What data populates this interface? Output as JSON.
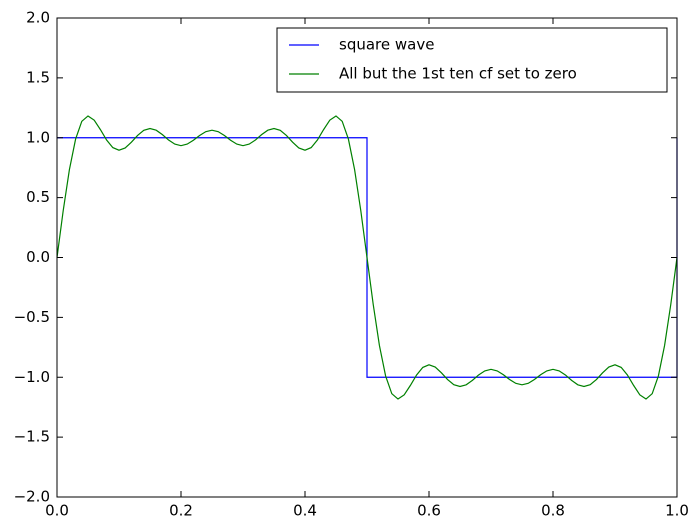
{
  "chart_data": {
    "type": "line",
    "series": [
      {
        "name": "square wave",
        "color": "#0000ff",
        "x": [
          0,
          0.5,
          0.5,
          1,
          1
        ],
        "values": [
          1,
          1,
          -1,
          -1,
          1
        ]
      },
      {
        "name": "All but the 1st ten cf set to zero",
        "color": "#008000",
        "x": [
          0,
          0.01,
          0.02,
          0.03,
          0.04,
          0.05,
          0.06,
          0.07,
          0.08,
          0.09,
          0.1,
          0.11,
          0.12,
          0.13,
          0.14,
          0.15,
          0.16,
          0.17,
          0.18,
          0.19,
          0.2,
          0.21,
          0.22,
          0.23,
          0.24,
          0.25,
          0.26,
          0.27,
          0.28,
          0.29,
          0.3,
          0.31,
          0.32,
          0.33,
          0.34,
          0.35,
          0.36,
          0.37,
          0.38,
          0.39,
          0.4,
          0.41,
          0.42,
          0.43,
          0.44,
          0.45,
          0.46,
          0.47,
          0.48,
          0.49,
          0.5,
          0.51,
          0.52,
          0.53,
          0.54,
          0.55,
          0.56,
          0.57,
          0.58,
          0.59,
          0.6,
          0.61,
          0.62,
          0.63,
          0.64,
          0.65,
          0.66,
          0.67,
          0.68,
          0.69,
          0.7,
          0.71,
          0.72,
          0.73,
          0.74,
          0.75,
          0.76,
          0.77,
          0.78,
          0.79,
          0.8,
          0.81,
          0.82,
          0.83,
          0.84,
          0.85,
          0.86,
          0.87,
          0.88,
          0.89,
          0.9,
          0.91,
          0.92,
          0.93,
          0.94,
          0.95,
          0.96,
          0.97,
          0.98,
          0.99,
          1
        ],
        "values": [
          0,
          0.391,
          0.734,
          0.989,
          1.137,
          1.182,
          1.147,
          1.068,
          0.981,
          0.918,
          0.896,
          0.915,
          0.963,
          1.019,
          1.062,
          1.077,
          1.063,
          1.026,
          0.981,
          0.947,
          0.934,
          0.947,
          0.979,
          1.019,
          1.051,
          1.063,
          1.051,
          1.019,
          0.979,
          0.947,
          0.934,
          0.947,
          0.981,
          1.026,
          1.063,
          1.077,
          1.062,
          1.019,
          0.963,
          0.915,
          0.896,
          0.918,
          0.981,
          1.068,
          1.147,
          1.182,
          1.137,
          0.989,
          0.734,
          0.391,
          0,
          -0.391,
          -0.734,
          -0.989,
          -1.137,
          -1.182,
          -1.147,
          -1.068,
          -0.981,
          -0.918,
          -0.896,
          -0.915,
          -0.963,
          -1.019,
          -1.062,
          -1.077,
          -1.063,
          -1.026,
          -0.981,
          -0.947,
          -0.934,
          -0.947,
          -0.979,
          -1.019,
          -1.051,
          -1.063,
          -1.051,
          -1.019,
          -0.979,
          -0.947,
          -0.934,
          -0.947,
          -0.981,
          -1.026,
          -1.063,
          -1.077,
          -1.062,
          -1.019,
          -0.963,
          -0.915,
          -0.896,
          -0.918,
          -0.981,
          -1.068,
          -1.147,
          -1.182,
          -1.137,
          -0.989,
          -0.734,
          -0.391,
          0
        ]
      }
    ],
    "xlim": [
      0,
      1
    ],
    "xticks": [
      {
        "value": 0,
        "label": "0.0"
      },
      {
        "value": 0.2,
        "label": "0.2"
      },
      {
        "value": 0.4,
        "label": "0.4"
      },
      {
        "value": 0.6,
        "label": "0.6"
      },
      {
        "value": 0.8,
        "label": "0.8"
      },
      {
        "value": 1,
        "label": "1.0"
      }
    ],
    "ylim": [
      -2,
      2
    ],
    "yticks": [
      {
        "value": -2,
        "label": "−2.0"
      },
      {
        "value": -1.5,
        "label": "−1.5"
      },
      {
        "value": -1,
        "label": "−1.0"
      },
      {
        "value": -0.5,
        "label": "−0.5"
      },
      {
        "value": 0,
        "label": "0.0"
      },
      {
        "value": 0.5,
        "label": "0.5"
      },
      {
        "value": 1,
        "label": "1.0"
      },
      {
        "value": 1.5,
        "label": "1.5"
      },
      {
        "value": 2,
        "label": "2.0"
      }
    ],
    "grid": false,
    "legend": "upper right"
  }
}
